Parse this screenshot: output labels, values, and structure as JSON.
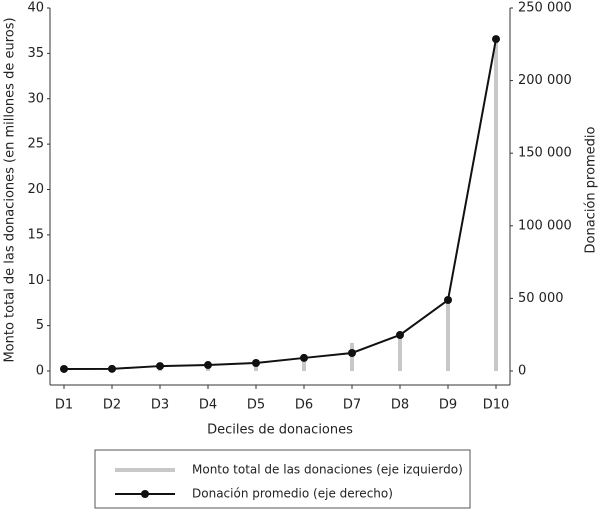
{
  "chart_data": {
    "type": "bar-line",
    "x_label": "Deciles de donaciones",
    "y_label": "Monto total de las donaciones (en millones de euros)",
    "y2_label": "Donación promedio",
    "categories": [
      "D1",
      "D2",
      "D3",
      "D4",
      "D5",
      "D6",
      "D7",
      "D8",
      "D9",
      "D10"
    ],
    "series": [
      {
        "name": "Monto total de las donaciones (eje izquierdo)",
        "color": "#c8c8c8",
        "type": "bar",
        "values": [
          0.2,
          0.3,
          0.5,
          0.6,
          0.8,
          1.5,
          3.1,
          4,
          7.8,
          36.5
        ]
      },
      {
        "name": "Donación promedio (eje derecho)",
        "color": "#111111",
        "type": "line",
        "axis": "y2",
        "values": [
          1400,
          1500,
          3400,
          4100,
          5500,
          9000,
          12400,
          24800,
          48900,
          228600
        ]
      }
    ],
    "ylim": [
      0,
      40
    ],
    "yticks": [
      0,
      5,
      10,
      15,
      20,
      25,
      30,
      35,
      40
    ],
    "y2lim": [
      0,
      250000
    ],
    "y2ticks": [
      0,
      {
        "value": 50000,
        "label": "50 000"
      },
      {
        "value": 100000,
        "label": "100 000"
      },
      {
        "value": 150000,
        "label": "150 000"
      },
      {
        "value": 200000,
        "label": "200 000"
      },
      {
        "value": 250000,
        "label": "250 000"
      }
    ],
    "legend": "bottom"
  }
}
